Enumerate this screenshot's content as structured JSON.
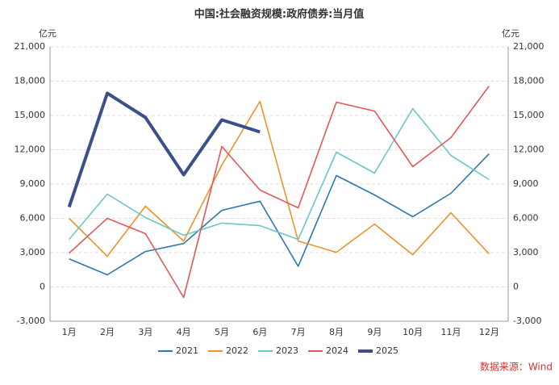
{
  "chart_data": {
    "type": "line",
    "title": "中国:社会融资规模:政府债券:当月值",
    "ylabel": "亿元",
    "y2label": "亿元",
    "source": "数据来源：Wind",
    "categories": [
      "1月",
      "2月",
      "3月",
      "4月",
      "5月",
      "6月",
      "7月",
      "8月",
      "9月",
      "10月",
      "11月",
      "12月"
    ],
    "series": [
      {
        "name": "2021",
        "color": "#2a78ac",
        "values": [
          2450,
          1060,
          3100,
          3800,
          6700,
          7500,
          1800,
          9740,
          8050,
          6140,
          8190,
          11640
        ]
      },
      {
        "name": "2022",
        "color": "#f0922b",
        "values": [
          6000,
          2680,
          7060,
          4020,
          10660,
          16230,
          4020,
          3030,
          5500,
          2820,
          6490,
          2890
        ]
      },
      {
        "name": "2023",
        "color": "#6cc6c8",
        "values": [
          4160,
          8120,
          6070,
          4520,
          5580,
          5360,
          4160,
          11790,
          9950,
          15600,
          11500,
          9390
        ]
      },
      {
        "name": "2024",
        "color": "#e0595a",
        "values": [
          2960,
          6000,
          4660,
          -920,
          12280,
          8470,
          6920,
          16160,
          15380,
          10520,
          13060,
          17570
        ]
      },
      {
        "name": "2025",
        "color": "#3c4f8a",
        "values": [
          6990,
          16940,
          14820,
          9810,
          14610,
          13550,
          null,
          null,
          null,
          null,
          null,
          null
        ]
      }
    ],
    "ylim": [
      -3000,
      21000
    ],
    "yticks": [
      {
        "value": -3000,
        "label": "-3,000"
      },
      0,
      {
        "value": 3000,
        "label": "3,000"
      },
      {
        "value": 6000,
        "label": "6,000"
      },
      {
        "value": 9000,
        "label": "9,000"
      },
      {
        "value": 12000,
        "label": "12,000"
      },
      {
        "value": 15000,
        "label": "15,000"
      },
      {
        "value": 18000,
        "label": "18,000"
      },
      {
        "value": 21000,
        "label": "21,000"
      }
    ],
    "y2lim": [
      -3000,
      21000
    ],
    "y2ticks": [
      {
        "value": -3000,
        "label": "-3,000"
      },
      0,
      {
        "value": 3000,
        "label": "3,000"
      },
      {
        "value": 6000,
        "label": "6,000"
      },
      {
        "value": 9000,
        "label": "9,000"
      },
      {
        "value": 12000,
        "label": "12,000"
      },
      {
        "value": 15000,
        "label": "15,000"
      },
      {
        "value": 18000,
        "label": "18,000"
      },
      {
        "value": 21000,
        "label": "21,000"
      }
    ],
    "grid": true,
    "legend": "bottom"
  }
}
